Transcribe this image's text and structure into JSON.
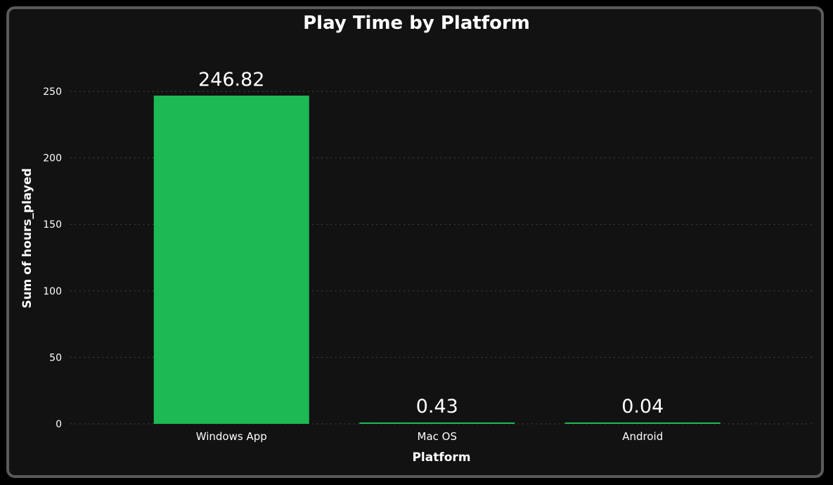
{
  "chart_data": {
    "type": "bar",
    "title": "Play Time by Platform",
    "xlabel": "Platform",
    "ylabel": "Sum of hours_played",
    "categories": [
      "Windows App",
      "Mac OS",
      "Android"
    ],
    "values": [
      246.82,
      0.43,
      0.04
    ],
    "data_labels": [
      "246.82",
      "0.43",
      "0.04"
    ],
    "ylim": [
      0,
      250
    ],
    "yticks": [
      0,
      50,
      100,
      150,
      200,
      250
    ],
    "grid": true,
    "bar_color": "#1db954",
    "background": "#121212",
    "border_color": "#5a5a5a"
  }
}
